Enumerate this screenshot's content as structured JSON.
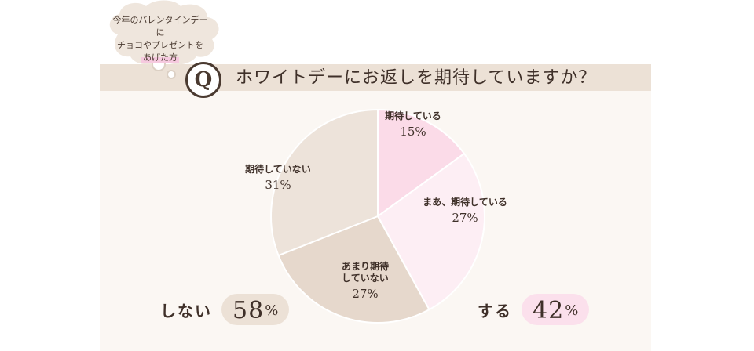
{
  "callout": {
    "line1": "今年のバレンタインデーに",
    "line2": "チョコやプレゼントを",
    "line3": "あげた方"
  },
  "question": {
    "badge": "Q",
    "text": "ホワイトデーにお返しを期待していますか？"
  },
  "summary": {
    "no_label": "しない",
    "no_value": "58",
    "yes_label": "する",
    "yes_value": "42",
    "percent_sign": "%"
  },
  "colors": {
    "title_bar": "#ece1d6",
    "panel": "#fbf7f3",
    "slice_expect": "#fbdbe8",
    "slice_somewhat": "#fdeef4",
    "slice_not_really": "#e6d8cc",
    "slice_no": "#ede3da"
  },
  "chart_data": {
    "type": "pie",
    "title": "ホワイトデーにお返しを期待していますか？",
    "slices": [
      {
        "label": "期待している",
        "value": 15,
        "display": "15%",
        "color": "#fbdbe8"
      },
      {
        "label": "まあ、期待している",
        "value": 27,
        "display": "27%",
        "color": "#fdeef4"
      },
      {
        "label": "あまり期待していない",
        "value": 27,
        "display": "27%",
        "color": "#e6d8cc"
      },
      {
        "label": "期待していない",
        "value": 31,
        "display": "31%",
        "color": "#ede3da"
      }
    ]
  }
}
